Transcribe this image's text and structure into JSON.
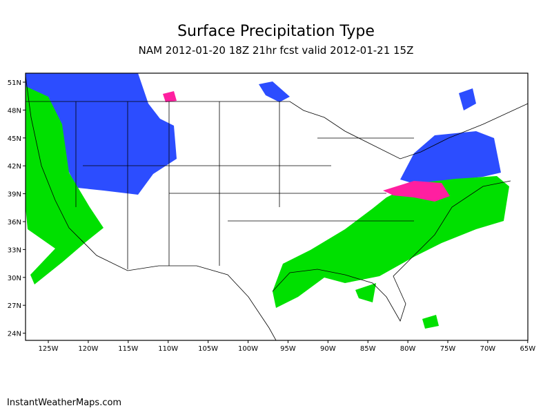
{
  "header": {
    "title": "Surface Precipitation Type",
    "subtitle": "NAM 2012-01-20 18Z 21hr fcst valid 2012-01-21 15Z"
  },
  "map": {
    "lat_labels": [
      "51N",
      "48N",
      "45N",
      "42N",
      "39N",
      "36N",
      "33N",
      "30N",
      "27N",
      "24N"
    ],
    "lon_labels": [
      "125W",
      "120W",
      "115W",
      "110W",
      "105W",
      "100W",
      "95W",
      "90W",
      "85W",
      "80W",
      "75W",
      "70W",
      "65W"
    ]
  },
  "footer": {
    "credit": "InstantWeatherMaps.com"
  }
}
